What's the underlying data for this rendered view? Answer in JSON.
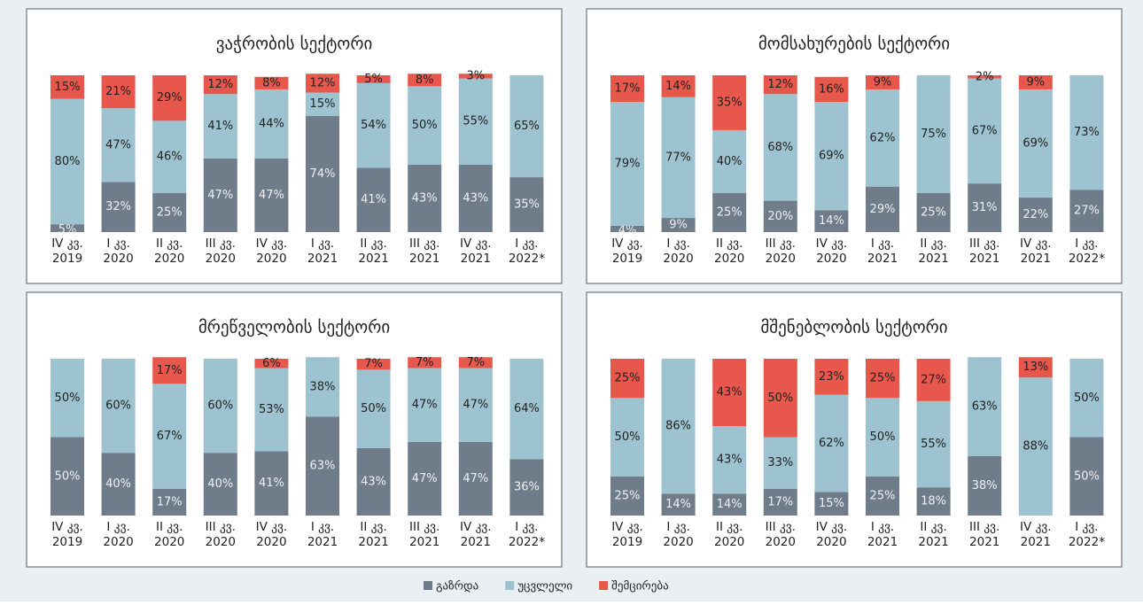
{
  "legend": [
    {
      "name": "გაზრდა",
      "color": "#6f7c8a"
    },
    {
      "name": "უცვლელი",
      "color": "#9dc3d0"
    },
    {
      "name": "შემცირება",
      "color": "#e8574b"
    }
  ],
  "chart_data": [
    {
      "type": "bar",
      "stacked": true,
      "title": "ვაჭრობის სექტორი",
      "ylim": [
        0,
        100
      ],
      "categories": [
        [
          "IV კვ.",
          "2019"
        ],
        [
          "I კვ.",
          "2020"
        ],
        [
          "II კვ.",
          "2020"
        ],
        [
          "III კვ.",
          "2020"
        ],
        [
          "IV კვ.",
          "2020"
        ],
        [
          "I კვ.",
          "2021"
        ],
        [
          "II კვ.",
          "2021"
        ],
        [
          "III კვ.",
          "2021"
        ],
        [
          "IV კვ.",
          "2021"
        ],
        [
          "I კვ.",
          "2022*"
        ]
      ],
      "series": [
        {
          "values": [
            5,
            32,
            25,
            47,
            47,
            74,
            41,
            43,
            43,
            35
          ],
          "value_labels": [
            "5%",
            "32%",
            "25%",
            "47%",
            "47%",
            "74%",
            "41%",
            "43%",
            "43%",
            "35%"
          ]
        },
        {
          "values": [
            80,
            47,
            46,
            41,
            44,
            15,
            54,
            50,
            55,
            65
          ],
          "value_labels": [
            "80%",
            "47%",
            "46%",
            "41%",
            "44%",
            "15%",
            "54%",
            "50%",
            "55%",
            "65%"
          ]
        },
        {
          "values": [
            15,
            21,
            29,
            12,
            8,
            12,
            5,
            8,
            3,
            null
          ],
          "value_labels": [
            "15%",
            "21%",
            "29%",
            "12%",
            "8%",
            "12%",
            "5%",
            "8%",
            "3%",
            null
          ]
        }
      ]
    },
    {
      "type": "bar",
      "stacked": true,
      "title": "მომსახურების სექტორი",
      "ylim": [
        0,
        100
      ],
      "categories": [
        [
          "IV კვ.",
          "2019"
        ],
        [
          "I კვ.",
          "2020"
        ],
        [
          "II კვ.",
          "2020"
        ],
        [
          "III კვ.",
          "2020"
        ],
        [
          "IV კვ.",
          "2020"
        ],
        [
          "I კვ.",
          "2021"
        ],
        [
          "II კვ.",
          "2021"
        ],
        [
          "III კვ.",
          "2021"
        ],
        [
          "IV კვ.",
          "2021"
        ],
        [
          "I კვ.",
          "2022*"
        ]
      ],
      "series": [
        {
          "values": [
            4,
            9,
            25,
            20,
            14,
            29,
            25,
            31,
            22,
            27
          ],
          "value_labels": [
            "4%",
            "9%",
            "25%",
            "20%",
            "14%",
            "29%",
            "25%",
            "31%",
            "22%",
            "27%"
          ]
        },
        {
          "values": [
            79,
            77,
            40,
            68,
            69,
            62,
            75,
            67,
            69,
            73
          ],
          "value_labels": [
            "79%",
            "77%",
            "40%",
            "68%",
            "69%",
            "62%",
            "75%",
            "67%",
            "69%",
            "73%"
          ]
        },
        {
          "values": [
            17,
            14,
            35,
            12,
            16,
            9,
            null,
            2,
            9,
            null
          ],
          "value_labels": [
            "17%",
            "14%",
            "35%",
            "12%",
            "16%",
            "9%",
            null,
            "2%",
            "9%",
            null
          ]
        }
      ]
    },
    {
      "type": "bar",
      "stacked": true,
      "title": "მრეწველობის სექტორი",
      "ylim": [
        0,
        100
      ],
      "categories": [
        [
          "IV კვ.",
          "2019"
        ],
        [
          "I კვ.",
          "2020"
        ],
        [
          "II კვ.",
          "2020"
        ],
        [
          "III კვ.",
          "2020"
        ],
        [
          "IV კვ.",
          "2020"
        ],
        [
          "I კვ.",
          "2021"
        ],
        [
          "II კვ.",
          "2021"
        ],
        [
          "III კვ.",
          "2021"
        ],
        [
          "IV კვ.",
          "2021"
        ],
        [
          "I კვ.",
          "2022*"
        ]
      ],
      "series": [
        {
          "values": [
            50,
            40,
            17,
            40,
            41,
            63,
            43,
            47,
            47,
            36
          ],
          "value_labels": [
            "50%",
            "40%",
            "17%",
            "40%",
            "41%",
            "63%",
            "43%",
            "47%",
            "47%",
            "36%"
          ]
        },
        {
          "values": [
            50,
            60,
            67,
            60,
            53,
            38,
            50,
            47,
            47,
            64
          ],
          "value_labels": [
            "50%",
            "60%",
            "67%",
            "60%",
            "53%",
            "38%",
            "50%",
            "47%",
            "47%",
            "64%"
          ]
        },
        {
          "values": [
            null,
            null,
            17,
            null,
            6,
            null,
            7,
            7,
            7,
            null
          ],
          "value_labels": [
            null,
            null,
            "17%",
            null,
            "6%",
            null,
            "7%",
            "7%",
            "7%",
            null
          ]
        }
      ]
    },
    {
      "type": "bar",
      "stacked": true,
      "title": "მშენებლობის სექტორი",
      "ylim": [
        0,
        100
      ],
      "categories": [
        [
          "IV კვ.",
          "2019"
        ],
        [
          "I კვ.",
          "2020"
        ],
        [
          "II კვ.",
          "2020"
        ],
        [
          "III კვ.",
          "2020"
        ],
        [
          "IV კვ.",
          "2020"
        ],
        [
          "I კვ.",
          "2021"
        ],
        [
          "II კვ.",
          "2021"
        ],
        [
          "III კვ.",
          "2021"
        ],
        [
          "IV კვ.",
          "2021"
        ],
        [
          "I კვ.",
          "2022*"
        ]
      ],
      "series": [
        {
          "values": [
            25,
            14,
            14,
            17,
            15,
            25,
            18,
            38,
            null,
            50
          ],
          "value_labels": [
            "25%",
            "14%",
            "14%",
            "17%",
            "15%",
            "25%",
            "18%",
            "38%",
            null,
            "50%"
          ]
        },
        {
          "values": [
            50,
            86,
            43,
            33,
            62,
            50,
            55,
            63,
            88,
            50
          ],
          "value_labels": [
            "50%",
            "86%",
            "43%",
            "33%",
            "62%",
            "50%",
            "55%",
            "63%",
            "88%",
            "50%"
          ]
        },
        {
          "values": [
            25,
            null,
            43,
            50,
            23,
            25,
            27,
            null,
            13,
            null
          ],
          "value_labels": [
            "25%",
            null,
            "43%",
            "50%",
            "23%",
            "25%",
            "27%",
            null,
            "13%",
            null
          ]
        }
      ]
    }
  ]
}
